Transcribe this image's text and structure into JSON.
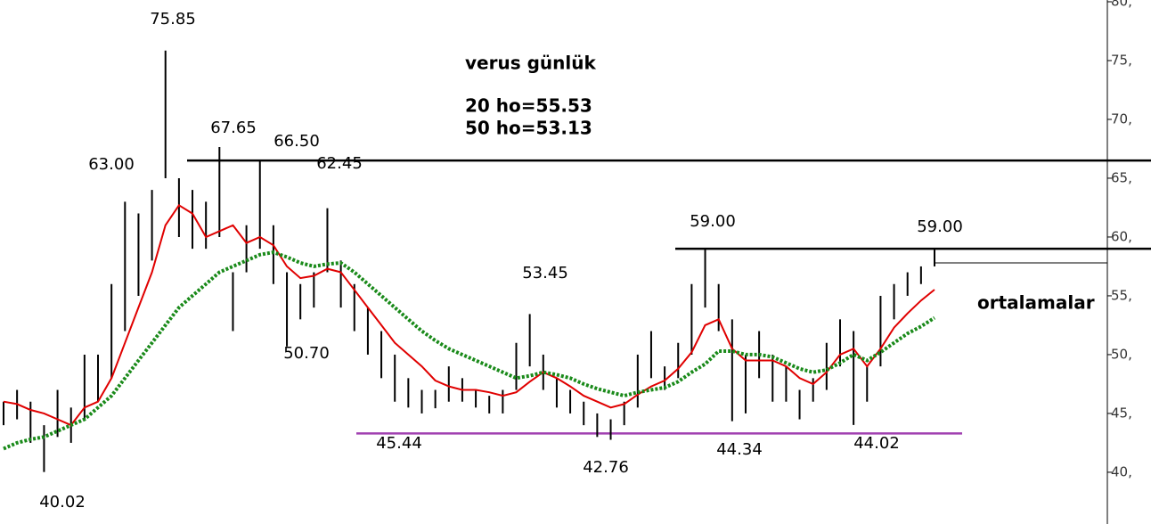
{
  "chart_data": {
    "type": "range-bar",
    "title": "verus günlük",
    "ma_labels": [
      "20 ho=55.53",
      "50 ho=53.13"
    ],
    "note": "ortalamalar",
    "high": [
      46,
      47,
      46,
      44,
      47,
      45.5,
      50,
      50,
      56,
      63,
      62,
      64,
      75.85,
      65,
      64,
      63,
      67.65,
      57,
      61,
      66.5,
      61,
      57,
      56,
      57,
      62.45,
      58,
      56,
      54,
      52,
      50,
      48,
      47,
      47,
      49,
      48,
      47,
      46.5,
      47,
      51,
      53.45,
      50,
      48,
      47,
      46,
      45,
      44.5,
      46,
      50,
      52,
      49,
      51,
      56,
      59,
      56,
      53,
      50,
      52,
      50,
      49,
      47,
      48,
      51,
      53,
      52,
      49,
      55,
      56,
      57,
      57.5,
      59
    ],
    "low": [
      44,
      44.5,
      42.5,
      40.02,
      43,
      42.5,
      44.5,
      46,
      48,
      52,
      55,
      58,
      65,
      60,
      59,
      59,
      60,
      52,
      57,
      59,
      56,
      50.7,
      53,
      54,
      57,
      54,
      52,
      50,
      48,
      46,
      45.5,
      45,
      45.44,
      46,
      46,
      45.5,
      45,
      45,
      47,
      49,
      47,
      45.5,
      45,
      44,
      43,
      42.76,
      44,
      45.5,
      48,
      47,
      48,
      50,
      54,
      52,
      44.34,
      45,
      48,
      46,
      46,
      44.5,
      46,
      47,
      49,
      44.02,
      46,
      49,
      53,
      55,
      56,
      57.5
    ],
    "bar_color": "#000000",
    "series": [
      {
        "color": "#e00000",
        "values": [
          46,
          45.8,
          45.3,
          45,
          44.5,
          44,
          45.5,
          46,
          48,
          51,
          54,
          57,
          61,
          62.7,
          62,
          60,
          60.5,
          61,
          59.5,
          60,
          59.3,
          57.5,
          56.5,
          56.7,
          57.3,
          57,
          55.5,
          54,
          52.5,
          51,
          50,
          49,
          47.8,
          47.3,
          47,
          47,
          46.8,
          46.5,
          46.8,
          47.7,
          48.5,
          48,
          47.3,
          46.5,
          46,
          45.5,
          45.8,
          46.6,
          47.3,
          47.8,
          48.8,
          50.2,
          52.5,
          53,
          50.5,
          49.5,
          49.5,
          49.5,
          49,
          48,
          47.5,
          48.5,
          50,
          50.5,
          49,
          50.5,
          52.3,
          53.5,
          54.6,
          55.53
        ]
      },
      {
        "color": "#1a8a1a",
        "values": [
          42,
          42.5,
          42.8,
          43,
          43.5,
          44,
          44.5,
          45.5,
          46.5,
          48,
          49.5,
          51,
          52.5,
          54,
          55,
          56,
          57,
          57.5,
          58,
          58.5,
          58.7,
          58.3,
          57.8,
          57.5,
          57.7,
          57.8,
          57,
          56,
          55,
          54,
          53,
          52,
          51.2,
          50.5,
          50,
          49.5,
          49,
          48.5,
          48,
          48.2,
          48.5,
          48.3,
          48,
          47.5,
          47.1,
          46.8,
          46.5,
          46.8,
          47,
          47.2,
          47.7,
          48.5,
          49.2,
          50.3,
          50.3,
          50,
          50,
          49.8,
          49.3,
          48.8,
          48.5,
          48.7,
          49.3,
          50,
          49.5,
          50.2,
          51,
          51.8,
          52.4,
          53.13
        ]
      }
    ],
    "levels": [
      {
        "value": 66.5,
        "color": "#000000"
      },
      {
        "value": 59,
        "color": "#000000"
      },
      {
        "value": 43.3,
        "color": "#a040b0"
      },
      {
        "value": 57.8,
        "color": "#000000"
      }
    ],
    "annotations": [
      "75.85",
      "63.00",
      "67.65",
      "66.50",
      "62.45",
      "50.70",
      "53.45",
      "45.44",
      "42.76",
      "44.34",
      "44.02",
      "40.02",
      "59.00",
      "59.00"
    ],
    "note_color": "#a040b0",
    "ylim": [
      35.6,
      80.15
    ],
    "yticks": [
      {
        "value": 40,
        "label": "40,"
      },
      {
        "value": 45,
        "label": "45,"
      },
      {
        "value": 50,
        "label": "50,"
      },
      {
        "value": 55,
        "label": "55,"
      },
      {
        "value": 60,
        "label": "60,"
      },
      {
        "value": 65,
        "label": "65,"
      },
      {
        "value": 70,
        "label": "70,"
      },
      {
        "value": 75,
        "label": "75,"
      },
      {
        "value": 80,
        "label": "80,"
      }
    ]
  }
}
